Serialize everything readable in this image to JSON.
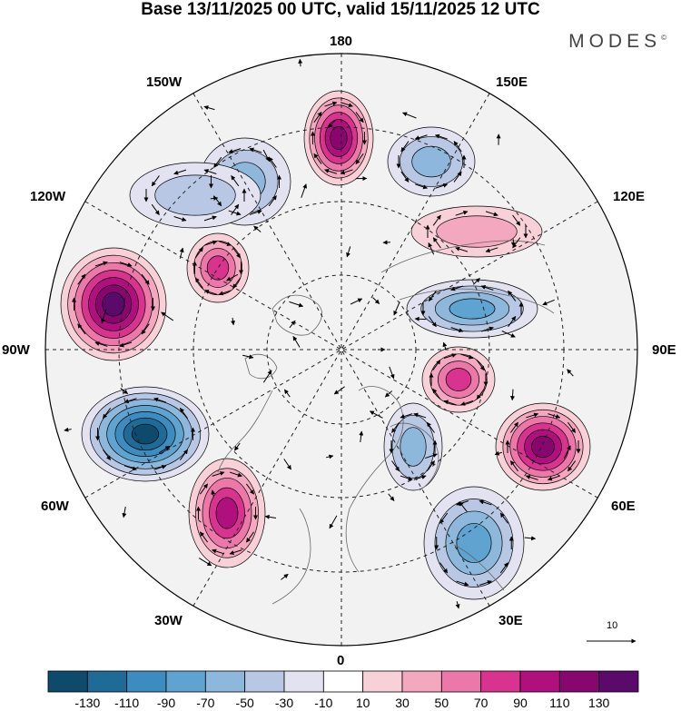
{
  "title": "Base 13/11/2025 00 UTC, valid 15/11/2025 12 UTC",
  "brand": "MODES",
  "brand_mark": "©",
  "longitude_labels": {
    "n180": "180",
    "w150": "150W",
    "e150": "150E",
    "w120": "120W",
    "e120": "120E",
    "w90": "90W",
    "e90": "90E",
    "w60": "60W",
    "e60": "60E",
    "w30": "30W",
    "e30": "30E",
    "s0": "0"
  },
  "vector_scale_label": "10",
  "colorbar": {
    "ticks": [
      "-130",
      "-110",
      "-90",
      "-70",
      "-50",
      "-30",
      "-10",
      "10",
      "30",
      "50",
      "70",
      "90",
      "110",
      "130"
    ],
    "colors": [
      "#0e4a6b",
      "#1f6b98",
      "#3c8cbf",
      "#5fa3d0",
      "#8db8dc",
      "#b8c8e4",
      "#e2e2f0",
      "#ffffff",
      "#f8d0d8",
      "#f3a8c0",
      "#ec78aa",
      "#d8348f",
      "#b00f7e",
      "#87076e",
      "#5a0a6a"
    ]
  },
  "anomaly_centers": [
    {
      "name": "pacific-positive",
      "value": 110
    },
    {
      "name": "east-pacific-negative",
      "value": -50
    },
    {
      "name": "alaska-negative",
      "value": -50
    },
    {
      "name": "canada-positive",
      "value": 130
    },
    {
      "name": "hudson-positive",
      "value": 70
    },
    {
      "name": "atlantic-negative",
      "value": -130
    },
    {
      "name": "north-atlantic-positive",
      "value": 90
    },
    {
      "name": "europe-negative",
      "value": -70
    },
    {
      "name": "scandinavia-negative",
      "value": -50
    },
    {
      "name": "siberia-negative",
      "value": -70
    },
    {
      "name": "ural-positive",
      "value": 70
    },
    {
      "name": "central-asia-positive",
      "value": 110
    },
    {
      "name": "east-asia-positive",
      "value": 30
    },
    {
      "name": "okhotsk-negative",
      "value": -30
    }
  ]
}
